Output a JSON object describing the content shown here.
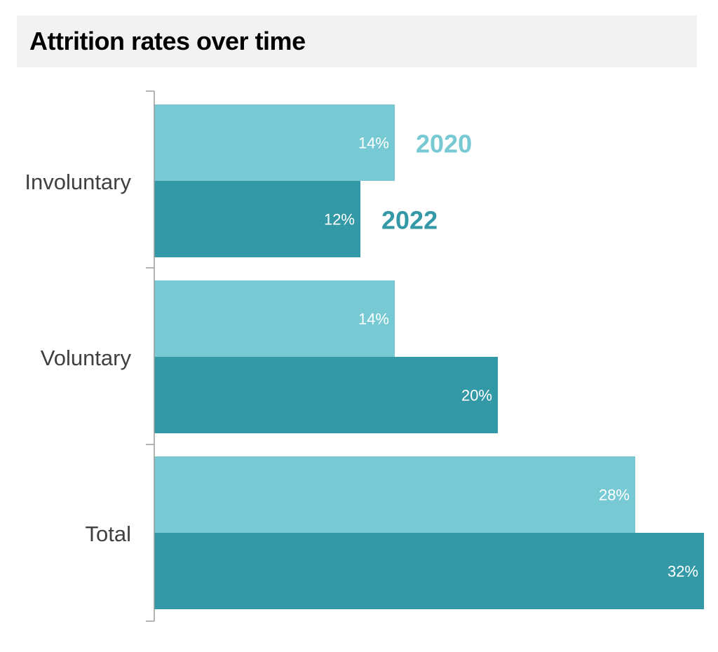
{
  "header": {
    "title": "Attrition rates over time"
  },
  "colors": {
    "series_2020": "#77c9d4",
    "series_2022": "#3499a7",
    "axis": "#9a9a9a",
    "category_label": "#404040",
    "bar_label": "#ffffff",
    "title_background": "#f2f2f2"
  },
  "chart_data": {
    "type": "bar",
    "orientation": "horizontal",
    "title": "Attrition rates over time",
    "xlabel": "",
    "ylabel": "",
    "xlim": [
      0,
      32
    ],
    "grid": false,
    "legend": "direct labels next to first category bars",
    "categories": [
      "Involuntary",
      "Voluntary",
      "Total"
    ],
    "series": [
      {
        "name": "2020",
        "values": [
          14,
          14,
          28
        ],
        "labels": [
          "14%",
          "14%",
          "28%"
        ],
        "color": "#77c9d4"
      },
      {
        "name": "2022",
        "values": [
          12,
          20,
          32
        ],
        "labels": [
          "12%",
          "20%",
          "32%"
        ],
        "color": "#3499a7"
      }
    ]
  }
}
